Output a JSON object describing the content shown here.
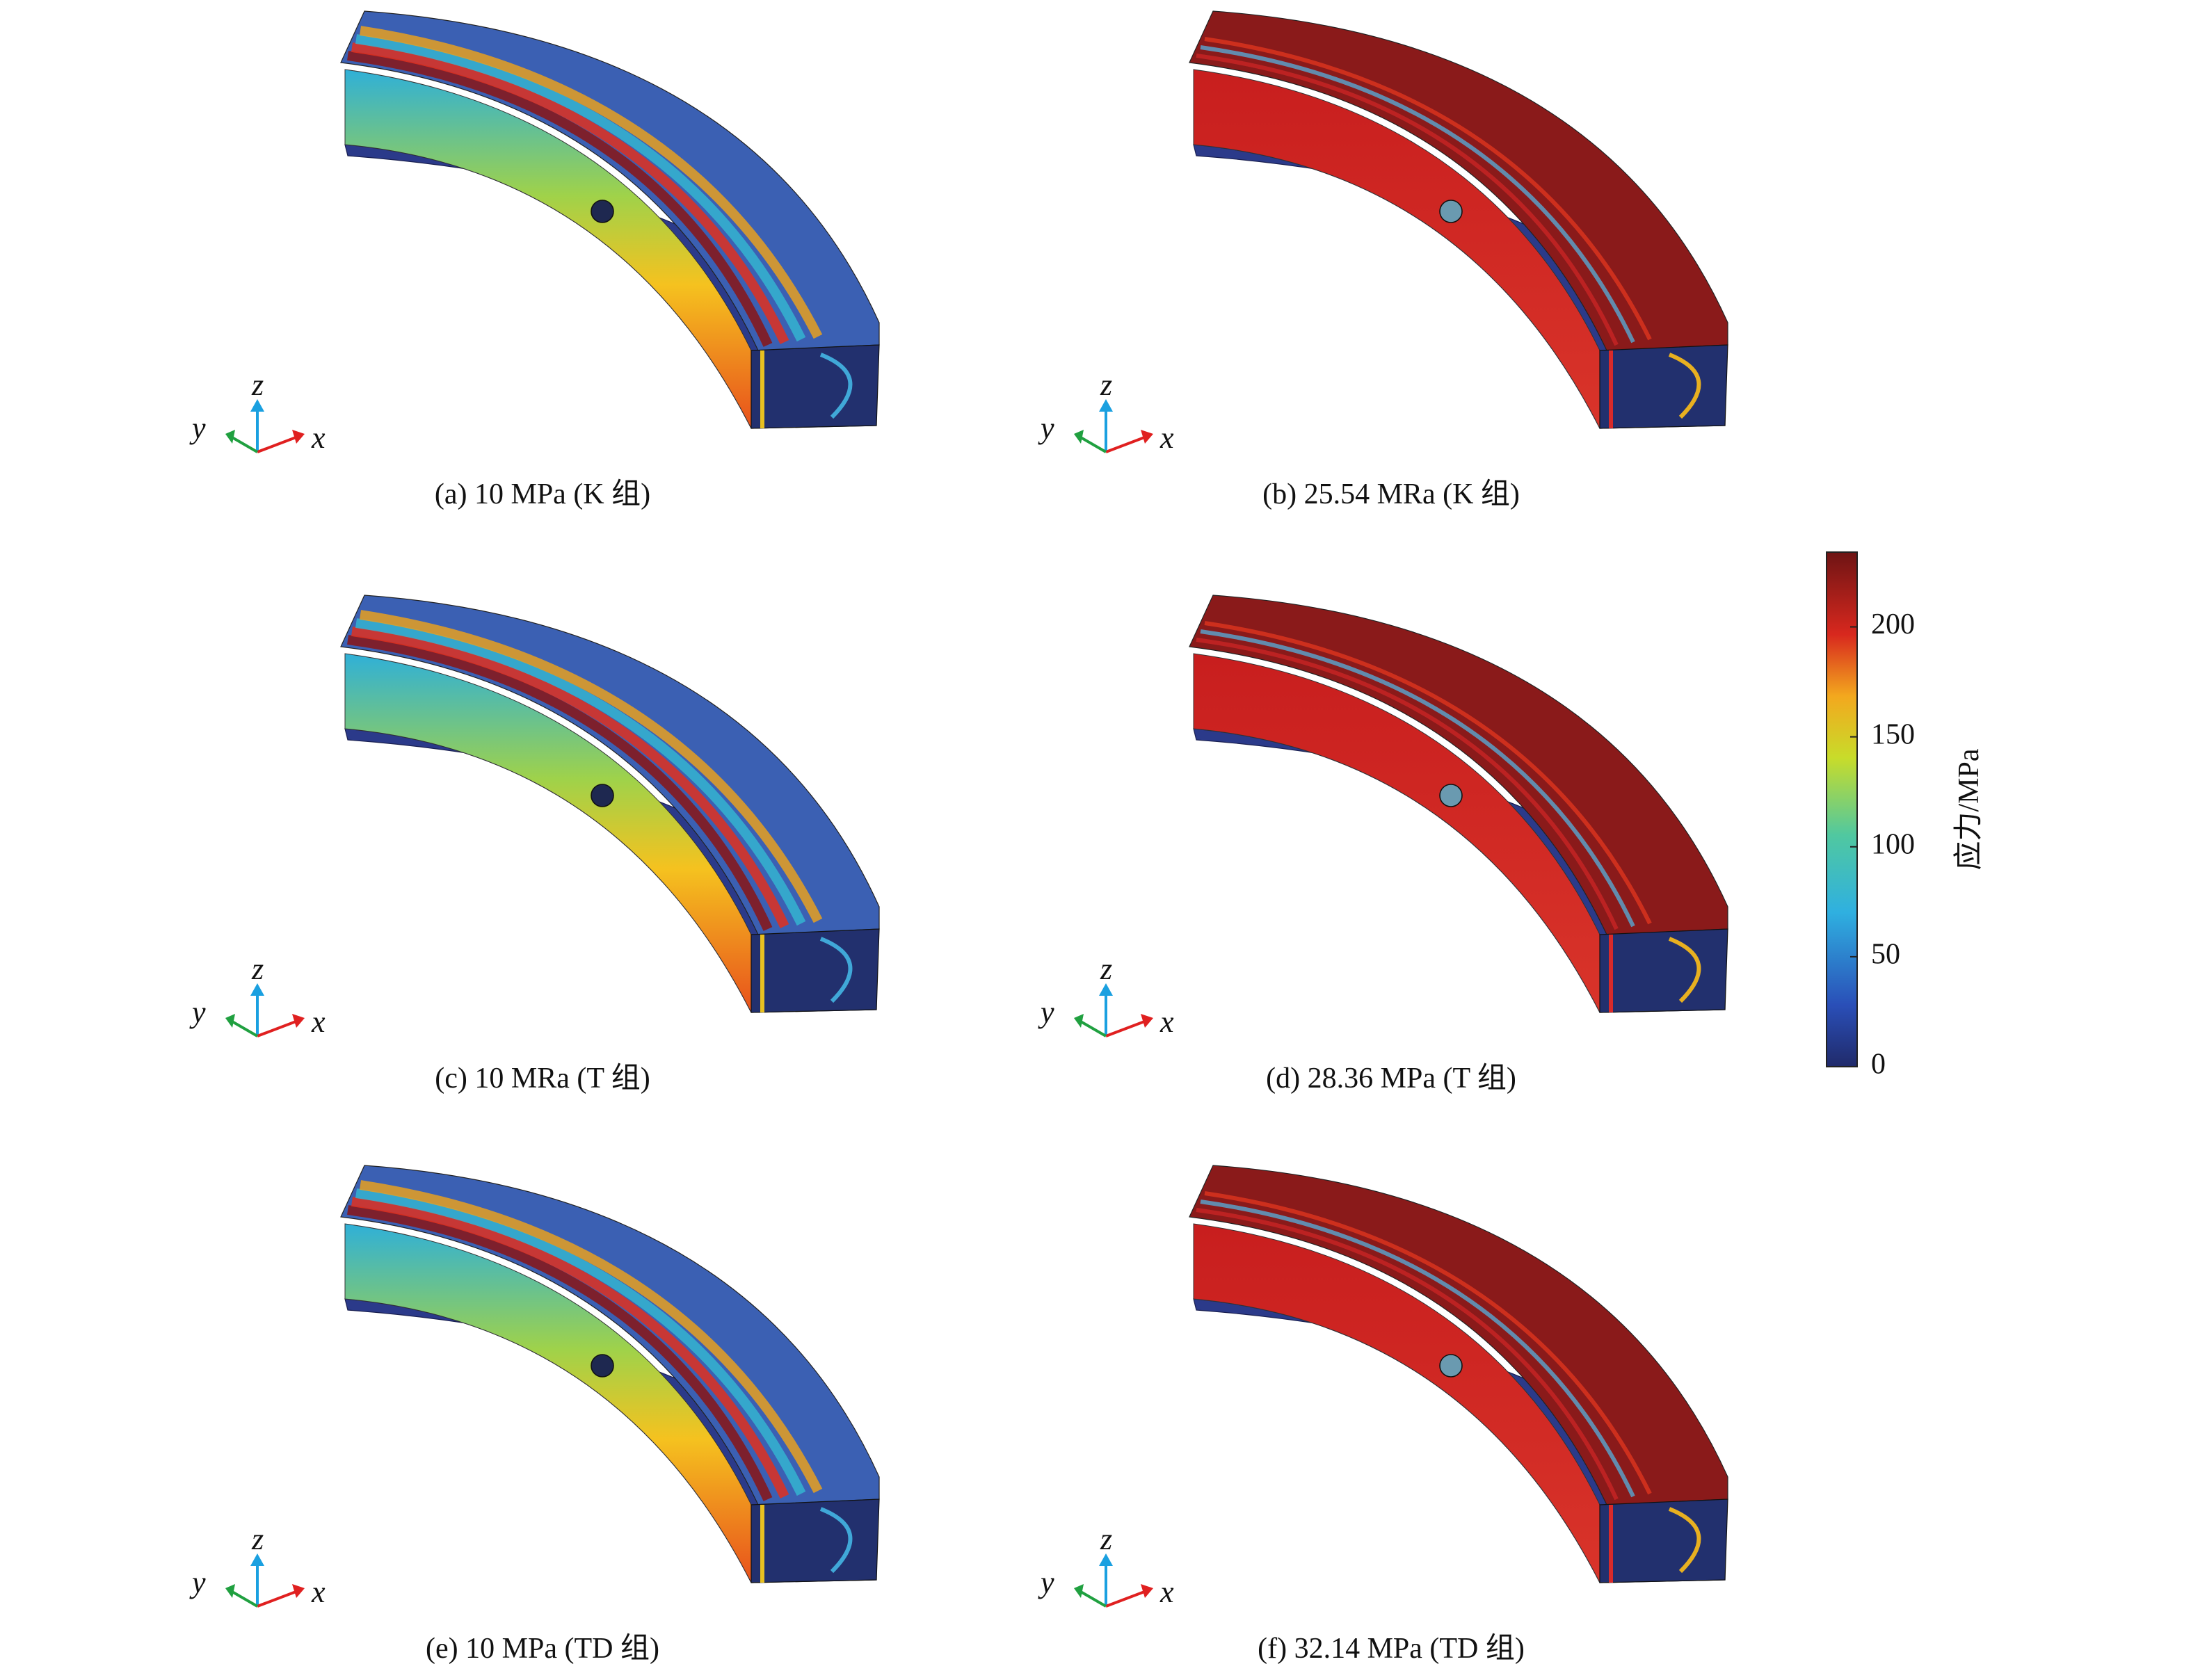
{
  "panels": [
    {
      "caption": "(a) 10 MPa (K 组)",
      "axes": {
        "x": "x",
        "y": "y",
        "z": "z"
      }
    },
    {
      "caption": "(b) 25.54 MRa (K 组)",
      "axes": {
        "x": "x",
        "y": "y",
        "z": "z"
      }
    },
    {
      "caption": "(c) 10 MRa (T 组)",
      "axes": {
        "x": "x",
        "y": "y",
        "z": "z"
      }
    },
    {
      "caption": "(d) 28.36 MPa (T 组)",
      "axes": {
        "x": "x",
        "y": "y",
        "z": "z"
      }
    },
    {
      "caption": "(e) 10 MPa (TD 组)",
      "axes": {
        "x": "x",
        "y": "y",
        "z": "z"
      }
    },
    {
      "caption": "(f) 32.14 MPa (TD 组)",
      "axes": {
        "x": "x",
        "y": "y",
        "z": "z"
      }
    }
  ],
  "colorbar": {
    "label": "应力/MPa",
    "lim": [
      0,
      234
    ],
    "ticks": [
      0,
      50,
      100,
      150,
      200
    ]
  }
}
